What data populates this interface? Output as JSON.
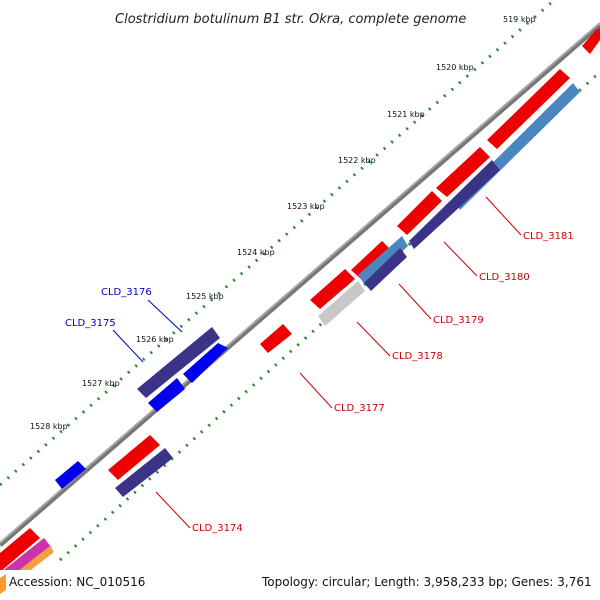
{
  "title": "Clostridium botulinum B1 str. Okra, complete genome",
  "footer": {
    "accession": "Accession: NC_010516",
    "summary": "Topology: circular; Length: 3,958,233 bp; Genes: 3,761"
  },
  "ticks": [
    "519 kbp",
    "1520 kbp",
    "1521 kbp",
    "1522 kbp",
    "1523 kbp",
    "1524 kbp",
    "1525 kbp",
    "1526 kbp",
    "1527 kbp",
    "1528 kbp"
  ],
  "gene_labels": [
    {
      "name": "CLD_3176",
      "color": "#0000cc"
    },
    {
      "name": "CLD_3175",
      "color": "#0000cc"
    },
    {
      "name": "CLD_3181",
      "color": "#cc0000"
    },
    {
      "name": "CLD_3180",
      "color": "#cc0000"
    },
    {
      "name": "CLD_3179",
      "color": "#cc0000"
    },
    {
      "name": "CLD_3178",
      "color": "#cc0000"
    },
    {
      "name": "CLD_3177",
      "color": "#cc0000"
    },
    {
      "name": "CLD_3174",
      "color": "#cc0000"
    }
  ],
  "colors": {
    "backbone": "#888888",
    "tick_dots": "#2a8a2a",
    "cds_red": "#ee0000",
    "cds_blue": "#0000ee",
    "cds_slate": "#3a3388",
    "cds_steel": "#4a86c0",
    "cds_grey": "#c8c8c8"
  }
}
